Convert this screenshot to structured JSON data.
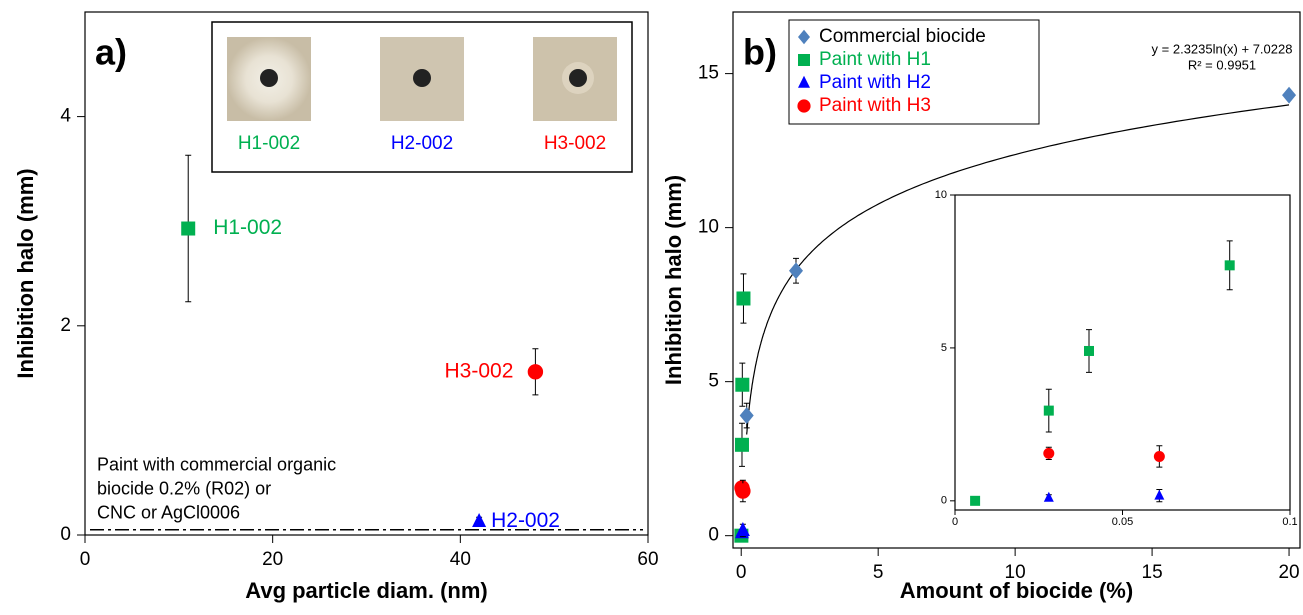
{
  "chart_data": [
    {
      "type": "scatter",
      "label": "a)",
      "xlabel": "Avg particle diam. (nm)",
      "ylabel": "Inhibition halo (mm)",
      "xlim": [
        0,
        60
      ],
      "xticks": [
        0,
        20,
        40,
        60
      ],
      "ylim": [
        0,
        5
      ],
      "yticks": [
        0,
        2,
        4
      ],
      "series": [
        {
          "name": "H1-002",
          "color": "#00b050",
          "marker": "square",
          "x": [
            11
          ],
          "values": [
            2.93
          ],
          "errors": [
            0.7
          ]
        },
        {
          "name": "H3-002",
          "color": "#ff0000",
          "marker": "circle",
          "x": [
            48
          ],
          "values": [
            1.56
          ],
          "errors": [
            0.22
          ]
        },
        {
          "name": "H2-002",
          "color": "#0000ff",
          "marker": "triangle",
          "x": [
            42
          ],
          "values": [
            0.13
          ],
          "errors": [
            0.04
          ]
        }
      ],
      "reference_line": {
        "value": 0.05,
        "label": [
          "Paint with commercial organic",
          "biocide 0.2% (R02) or",
          "CNC or AgCl0006"
        ]
      },
      "photos": [
        {
          "label": "H1-002",
          "color": "#00b050"
        },
        {
          "label": "H2-002",
          "color": "#0000ff"
        },
        {
          "label": "H3-002",
          "color": "#ff0000"
        }
      ]
    },
    {
      "type": "scatter",
      "label": "b)",
      "xlabel": "Amount of biocide (%)",
      "ylabel": "Inhibition halo (mm)",
      "xlim": [
        -0.3,
        20.4
      ],
      "xticks": [
        0,
        5,
        10,
        15,
        20
      ],
      "ylim": [
        -0.4,
        17
      ],
      "yticks": [
        0,
        5,
        10,
        15
      ],
      "legend": "upper left",
      "series": [
        {
          "name": "Commercial biocide",
          "color": "#4f81bd",
          "marker": "diamond",
          "x": [
            0.2,
            2,
            20
          ],
          "values": [
            3.9,
            8.6,
            14.3
          ],
          "errors": [
            0.4,
            0.4,
            0
          ]
        },
        {
          "name": "Paint with H1",
          "color": "#00b050",
          "marker": "square",
          "x": [
            0.006,
            0.028,
            0.04,
            0.082
          ],
          "values": [
            0,
            2.95,
            4.9,
            7.7
          ],
          "errors": [
            0.1,
            0.7,
            0.7,
            0.8
          ]
        },
        {
          "name": "Paint with H2",
          "color": "#0000ff",
          "marker": "triangle",
          "x": [
            0.028,
            0.061
          ],
          "values": [
            0.1,
            0.17
          ],
          "errors": [
            0.1,
            0.2
          ]
        },
        {
          "name": "Paint with H3",
          "color": "#ff0000",
          "marker": "circle",
          "x": [
            0.028,
            0.061
          ],
          "values": [
            1.55,
            1.45
          ],
          "errors": [
            0.2,
            0.35
          ]
        }
      ],
      "trendline": {
        "label": "y = 2.3235ln(x) + 7.0228",
        "r2": "R² = 0.9951",
        "coefficients": [
          2.3235,
          7.0228
        ]
      }
    },
    {
      "type": "scatter",
      "xlim": [
        0,
        0.1
      ],
      "xticks": [
        0,
        0.05,
        0.1
      ],
      "ylim": [
        -0.3,
        10
      ],
      "yticks": [
        0,
        5,
        10
      ],
      "series": [
        {
          "color": "#00b050",
          "marker": "square",
          "x": [
            0.006,
            0.028,
            0.04,
            0.082
          ],
          "values": [
            0,
            2.95,
            4.9,
            7.7
          ],
          "errors": [
            0.1,
            0.7,
            0.7,
            0.8
          ]
        },
        {
          "color": "#0000ff",
          "marker": "triangle",
          "x": [
            0.028,
            0.061
          ],
          "values": [
            0.1,
            0.17
          ],
          "errors": [
            0.1,
            0.2
          ]
        },
        {
          "color": "#ff0000",
          "marker": "circle",
          "x": [
            0.028,
            0.061
          ],
          "values": [
            1.55,
            1.45
          ],
          "errors": [
            0.2,
            0.35
          ]
        }
      ]
    }
  ]
}
